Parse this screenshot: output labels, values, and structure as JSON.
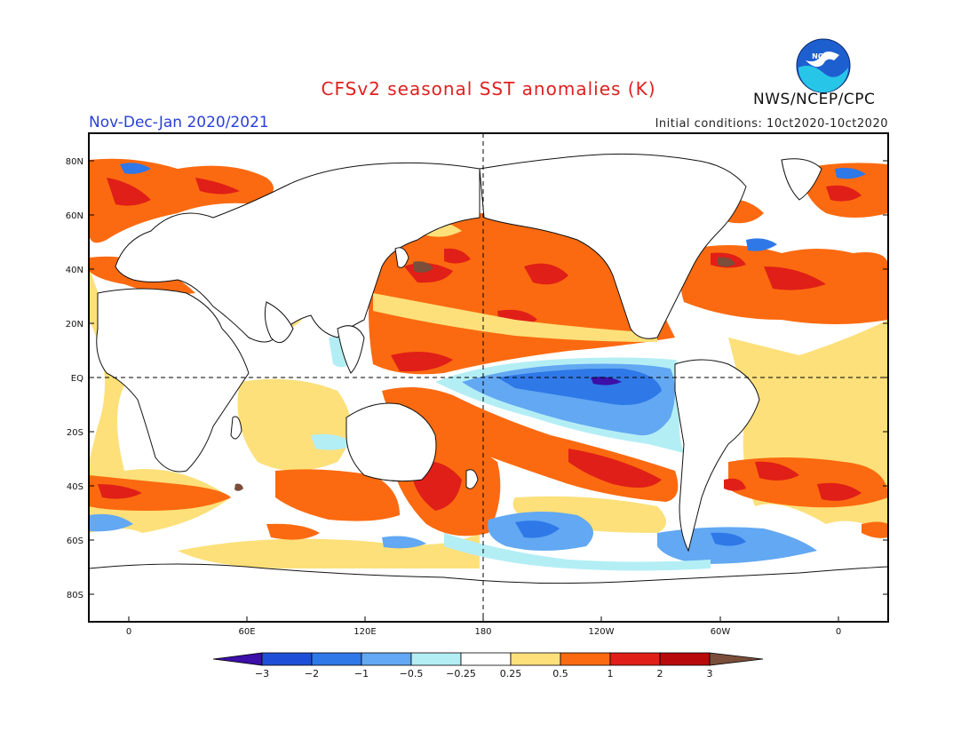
{
  "header": {
    "title": "CFSv2 seasonal SST anomalies (K)",
    "period": "Nov-Dec-Jan 2020/2021",
    "initial_conditions": "Initial conditions: 10ct2020-10ct2020",
    "agency": "NWS/NCEP/CPC",
    "logo_text": "NOAA"
  },
  "axes": {
    "lat_labels": [
      "80N",
      "60N",
      "40N",
      "20N",
      "EQ",
      "20S",
      "40S",
      "60S",
      "80S"
    ],
    "lon_labels": [
      "0",
      "60E",
      "120E",
      "180",
      "120W",
      "60W",
      "0"
    ]
  },
  "colorbar": {
    "labels": [
      "-3",
      "-2",
      "-1",
      "-0.5",
      "-0.25",
      "0.25",
      "0.5",
      "1",
      "2",
      "3"
    ],
    "colors": [
      "#3b0fa8",
      "#1f4fd6",
      "#2e78e8",
      "#62a8f2",
      "#b4eef5",
      "#ffffff",
      "#fde07a",
      "#fb6a10",
      "#e01f18",
      "#b80a0a",
      "#7a4e3a"
    ]
  },
  "colors": {
    "title": "#e02020",
    "period": "#2a3fd8",
    "land": "#ffffff",
    "warm": "#fb6a10",
    "cool": "#2e78e8"
  }
}
